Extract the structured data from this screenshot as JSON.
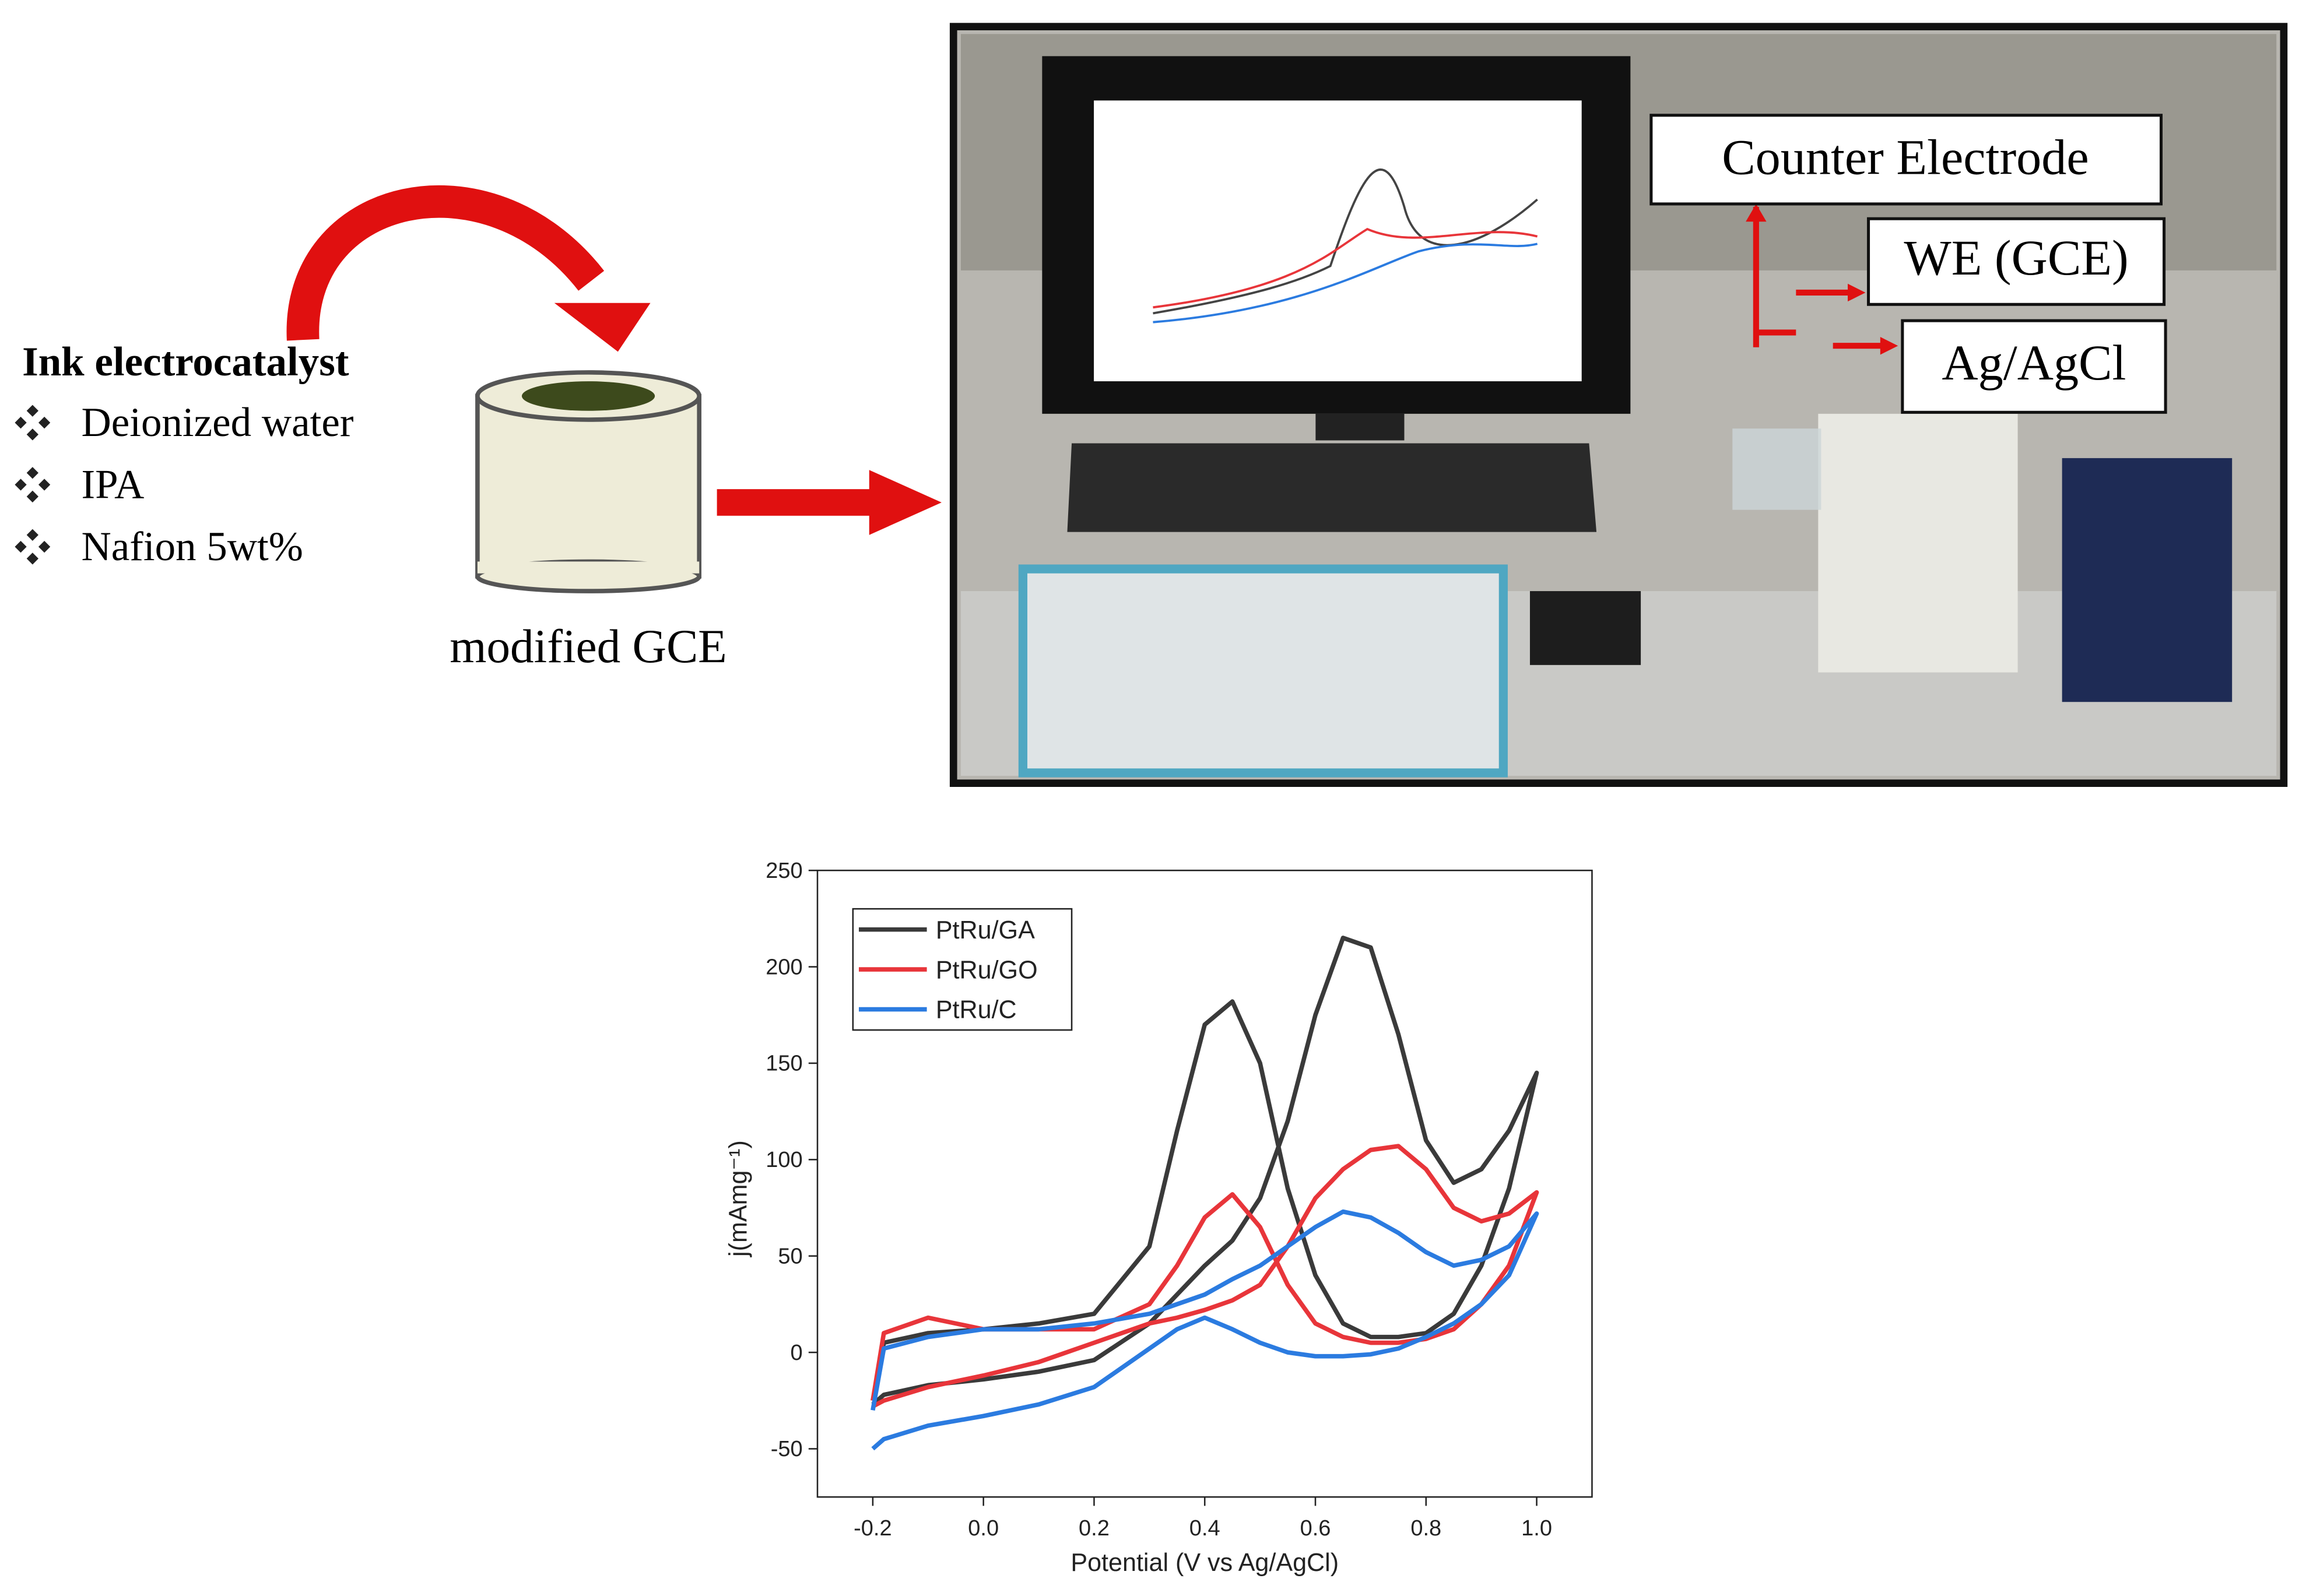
{
  "diagram": {
    "ink_title": "Ink electrocatalyst",
    "ink_items": [
      "Deionized water",
      "IPA",
      "Nafion 5wt%"
    ],
    "electrode_label": "modified GCE",
    "photo_labels": [
      "Counter Electrode",
      "WE (GCE)",
      "Ag/AgCl"
    ]
  },
  "chart_data": {
    "type": "line",
    "xlabel": "Potential (V vs Ag/AgCl)",
    "ylabel": "j(mAmg⁻¹)",
    "x": [
      -0.2,
      -0.18,
      -0.1,
      0,
      0.1,
      0.2,
      0.3,
      0.35,
      0.4,
      0.45,
      0.5,
      0.55,
      0.6,
      0.65,
      0.7,
      0.75,
      0.8,
      0.85,
      0.9,
      0.95,
      1.0,
      0.95,
      0.9,
      0.85,
      0.8,
      0.75,
      0.7,
      0.65,
      0.6,
      0.55,
      0.5,
      0.45,
      0.4,
      0.35,
      0.3,
      0.2,
      0.1,
      0,
      -0.1,
      -0.18,
      -0.2
    ],
    "series": [
      {
        "name": "PtRu/GA",
        "color": "#3a3a3a",
        "values": [
          -27,
          -22,
          -17,
          -14,
          -10,
          -4,
          15,
          30,
          45,
          58,
          80,
          120,
          175,
          215,
          210,
          165,
          110,
          88,
          95,
          115,
          145,
          85,
          45,
          20,
          10,
          8,
          8,
          15,
          40,
          85,
          150,
          182,
          170,
          115,
          55,
          20,
          15,
          12,
          10,
          5,
          -25
        ]
      },
      {
        "name": "PtRu/GO",
        "color": "#e8353a",
        "values": [
          -28,
          -25,
          -18,
          -12,
          -5,
          5,
          15,
          18,
          22,
          27,
          35,
          55,
          80,
          95,
          105,
          107,
          95,
          75,
          68,
          72,
          83,
          45,
          25,
          12,
          7,
          5,
          5,
          8,
          15,
          35,
          65,
          82,
          70,
          45,
          25,
          12,
          12,
          12,
          18,
          10,
          -25
        ]
      },
      {
        "name": "PtRu/C",
        "color": "#2b7be0",
        "values": [
          -50,
          -45,
          -38,
          -33,
          -27,
          -18,
          2,
          12,
          18,
          12,
          5,
          0,
          -2,
          -2,
          -1,
          2,
          8,
          15,
          25,
          40,
          72,
          55,
          48,
          45,
          52,
          62,
          70,
          73,
          65,
          55,
          45,
          38,
          30,
          25,
          20,
          15,
          12,
          12,
          8,
          2,
          -30
        ]
      }
    ],
    "xlim": [
      -0.3,
      1.1
    ],
    "xticks": [
      -0.2,
      {
        "value": 0,
        "label": "0.0"
      },
      0.2,
      0.4,
      0.6,
      0.8,
      {
        "value": 1,
        "label": "1.0"
      }
    ],
    "ylim": [
      -75,
      250
    ],
    "yticks": [
      -50,
      0,
      50,
      100,
      150,
      200,
      250
    ],
    "legend": "upper-left"
  }
}
